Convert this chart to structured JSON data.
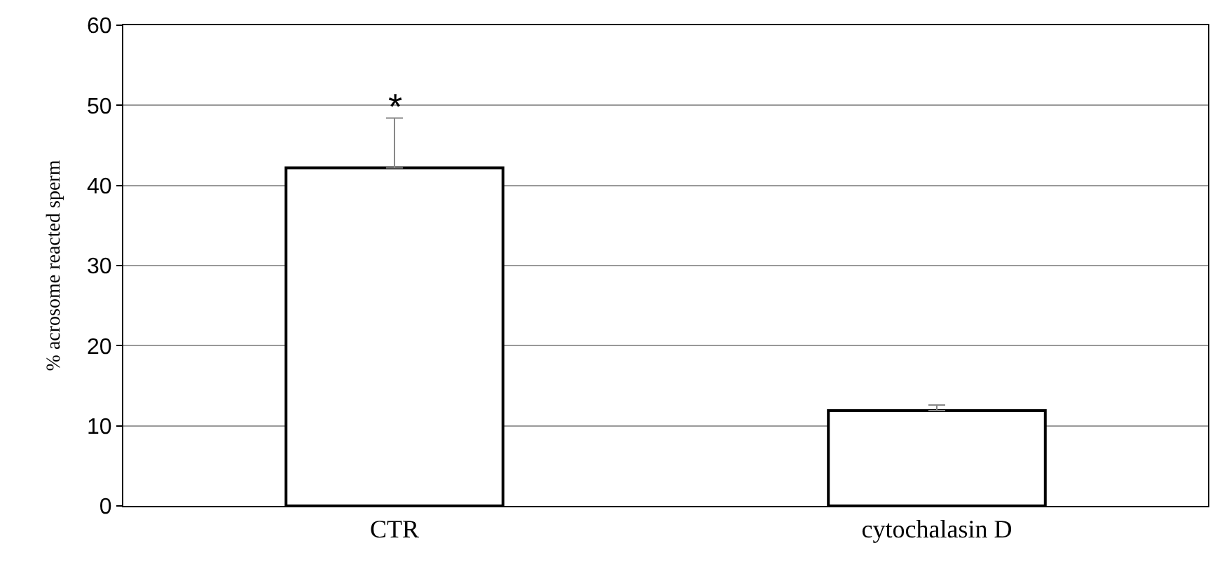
{
  "chart_data": {
    "type": "bar",
    "ylabel": "% acrosome reacted sperm",
    "categories": [
      "CTR",
      "cytochalasin D"
    ],
    "values": [
      42.2,
      11.9
    ],
    "color": "#ffffff",
    "errors": [
      [
        42.2,
        48.4
      ],
      [
        11.9,
        12.6
      ]
    ],
    "ylim": [
      0,
      60
    ],
    "yticks": [
      0,
      10,
      20,
      30,
      40,
      50,
      60
    ],
    "grid": "y",
    "annotations": [
      "*"
    ]
  }
}
